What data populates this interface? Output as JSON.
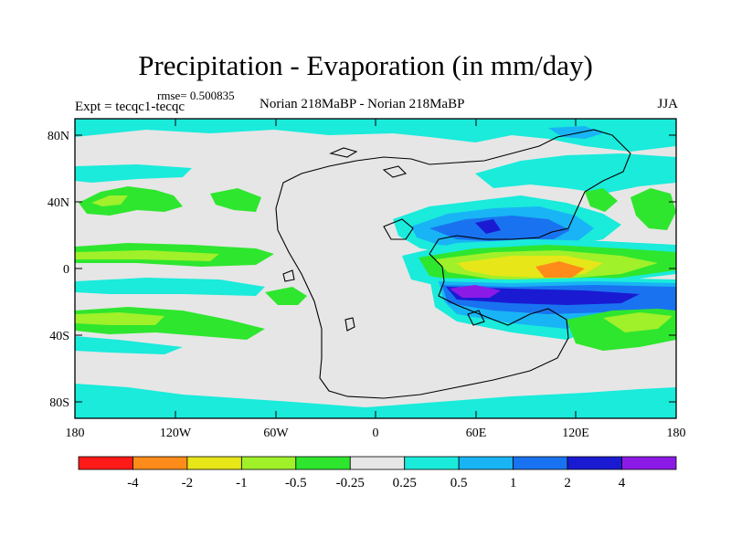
{
  "title": "Precipitation - Evaporation (in mm/day)",
  "rmse": "rmse= 0.500835",
  "expt": "Expt = tecqc1-tecqc",
  "experiment_label": "Norian 218MaBP - Norian 218MaBP",
  "season": "JJA",
  "lat_ticks": [
    "80N",
    "40N",
    "0",
    "40S",
    "80S"
  ],
  "lon_ticks": [
    "180",
    "120W",
    "60W",
    "0",
    "60E",
    "120E",
    "180"
  ],
  "colorbar": {
    "colors": [
      "#ff1a1a",
      "#ff8c1a",
      "#e6e619",
      "#a0f02a",
      "#2ee62e",
      "#e6e6e6",
      "#1aebdb",
      "#19b4f5",
      "#1973f0",
      "#1a1ad2",
      "#8c1ae6"
    ],
    "labels": [
      "-4",
      "-2",
      "-1",
      "-0.5",
      "-0.25",
      "0.25",
      "0.5",
      "1",
      "2",
      "4"
    ]
  },
  "chart_data": {
    "type": "heatmap",
    "title": "Precipitation - Evaporation (in mm/day)",
    "variable": "P - E",
    "units": "mm/day",
    "season": "JJA",
    "lon_range": [
      -180,
      180
    ],
    "lat_range": [
      -90,
      90
    ],
    "levels": [
      -4,
      -2,
      -1,
      -0.5,
      -0.25,
      0.25,
      0.5,
      1,
      2,
      4
    ],
    "rmse": 0.500835
  }
}
